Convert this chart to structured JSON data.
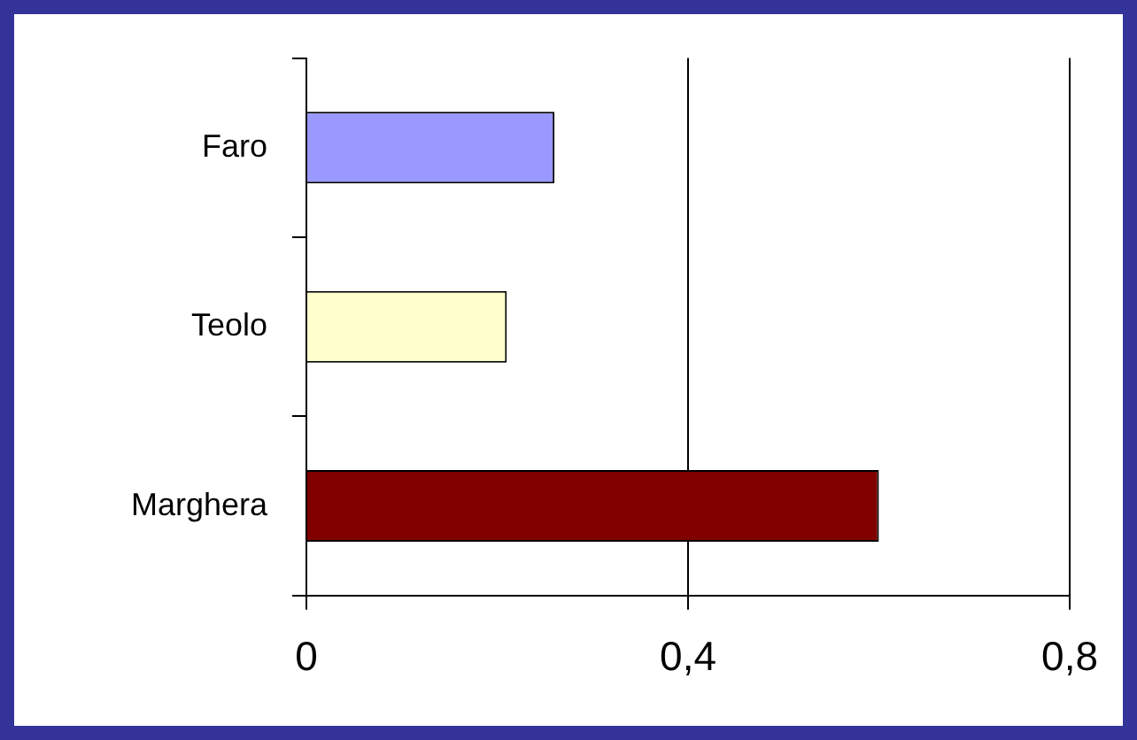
{
  "chart_data": {
    "type": "bar",
    "orientation": "horizontal",
    "categories": [
      "Faro",
      "Teolo",
      "Marghera"
    ],
    "values": [
      0.26,
      0.21,
      0.6
    ],
    "colors": [
      "#9999ff",
      "#ffffcc",
      "#800000"
    ],
    "xlim": [
      0,
      0.8
    ],
    "xticks": [
      {
        "value": 0,
        "label": "0"
      },
      {
        "value": 0.4,
        "label": "0,4"
      },
      {
        "value": 0.8,
        "label": "0,8"
      }
    ],
    "grid": "x",
    "legend": false
  }
}
